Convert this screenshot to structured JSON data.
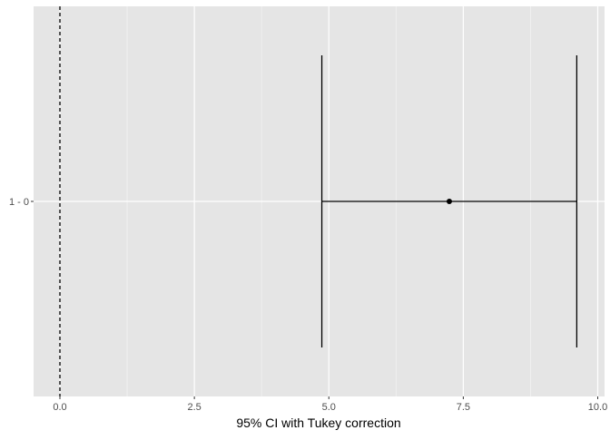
{
  "chart_data": {
    "type": "errorbar",
    "title": "",
    "xlabel": "95% CI with Tukey correction",
    "ylabel": "",
    "xlim": [
      -0.5,
      10.05
    ],
    "x_ticks": [
      0,
      2.5,
      5,
      7.5,
      10
    ],
    "x_tick_labels": [
      "0.0",
      "2.5",
      "5.0",
      "7.5",
      "10.0"
    ],
    "categories": [
      "1 - 0"
    ],
    "estimates": [
      7.24
    ],
    "lower": [
      4.87
    ],
    "upper": [
      9.61
    ],
    "reference_line": {
      "x": 0,
      "style": "dashed"
    },
    "grid": true,
    "colors": {
      "panel": "#e5e5e5",
      "grid": "#ffffff",
      "mark": "#000000",
      "tick_text": "#4d4d4d"
    }
  }
}
